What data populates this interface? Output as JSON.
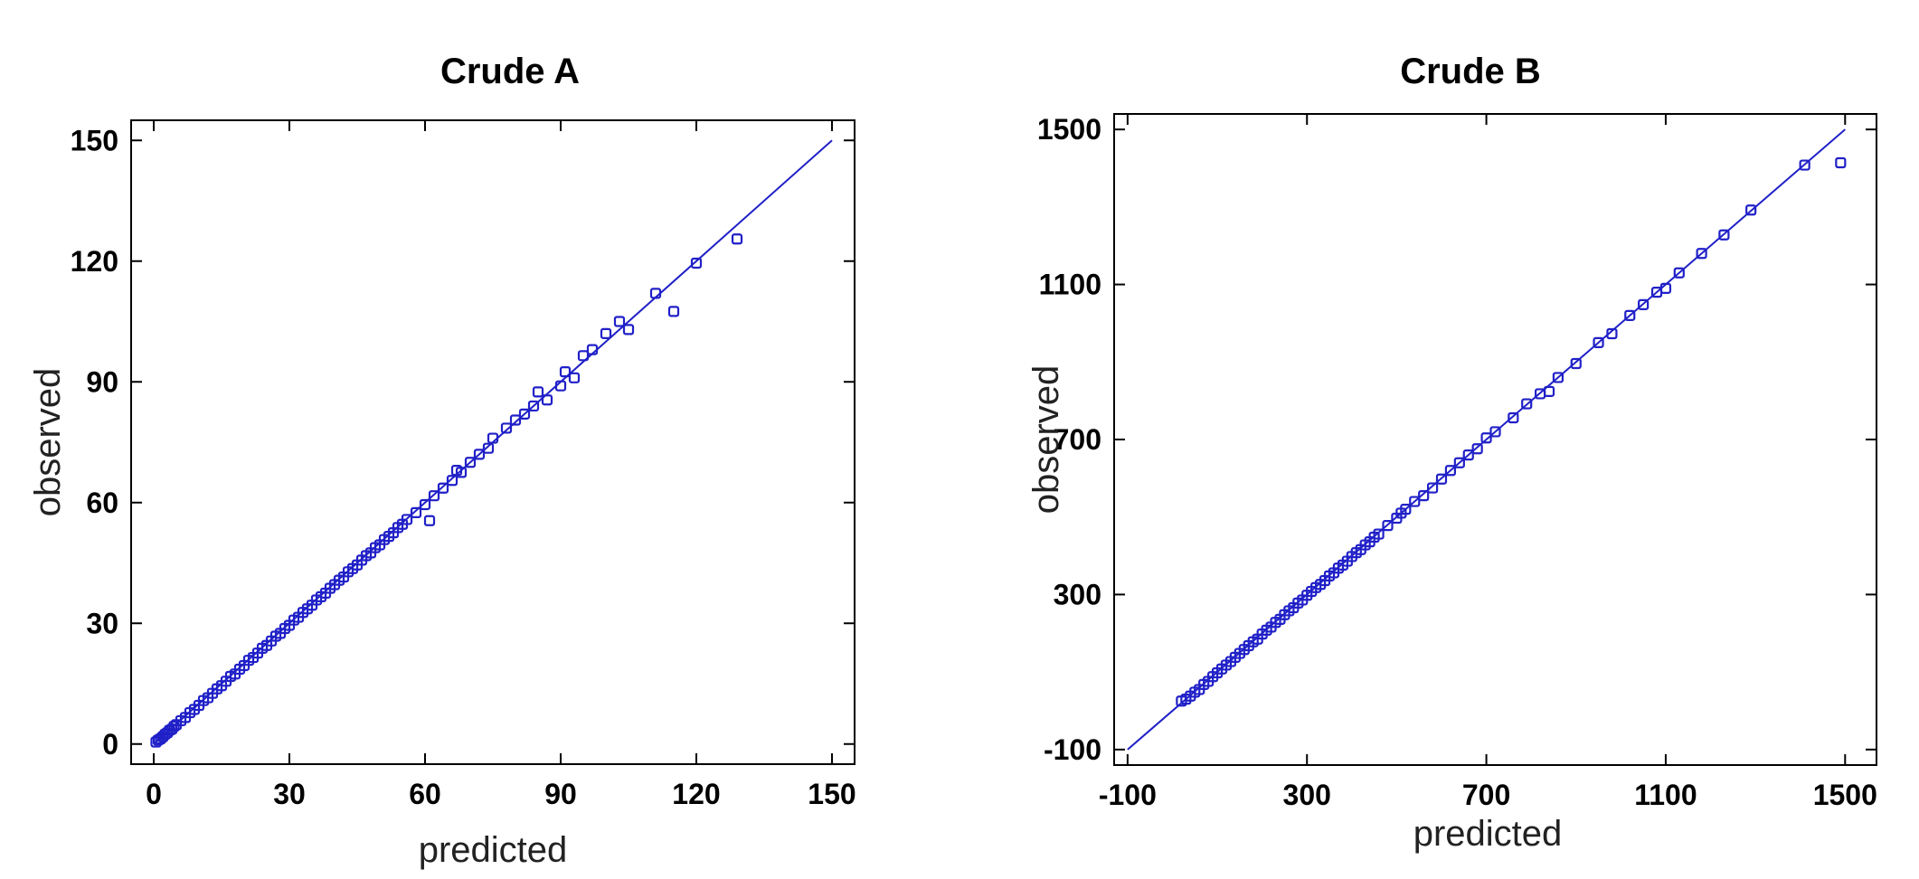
{
  "chart_data": [
    {
      "type": "scatter",
      "title": "Crude A",
      "xlabel": "predicted",
      "ylabel": "observed",
      "xlim": [
        -5,
        155
      ],
      "ylim": [
        -5,
        155
      ],
      "xticks": [
        0,
        30,
        60,
        90,
        120,
        150
      ],
      "yticks": [
        0,
        30,
        60,
        90,
        120,
        150
      ],
      "grid": false,
      "legend": "none",
      "color": "#2020c8",
      "fit_line": {
        "from": [
          0,
          0
        ],
        "to": [
          150,
          150
        ]
      },
      "series": [
        {
          "x": [
            0.5,
            1,
            1.5,
            2,
            2.5,
            3,
            3.5,
            4,
            4.5,
            5,
            6,
            7,
            8,
            9,
            10,
            11,
            12,
            13,
            14,
            15,
            16,
            17,
            18,
            19,
            20,
            21,
            22,
            23,
            24,
            25,
            26,
            27,
            28,
            29,
            30,
            31,
            32,
            33,
            34,
            35,
            36,
            37,
            38,
            39,
            40,
            41,
            42,
            43,
            44,
            45,
            46,
            47,
            48,
            49,
            50,
            51,
            52,
            53,
            54,
            55,
            56,
            58,
            60,
            61,
            62,
            64,
            66,
            67,
            68,
            70,
            72,
            74,
            75,
            78,
            80,
            82,
            84,
            85,
            87,
            90,
            91,
            93,
            95,
            97,
            100,
            103,
            105,
            111,
            115,
            120,
            129
          ],
          "y": [
            0.5,
            1,
            1.3,
            1.8,
            2.4,
            2.8,
            3.4,
            3.7,
            4.4,
            4.8,
            5.8,
            6.6,
            7.8,
            8.6,
            9.6,
            10.8,
            11.5,
            12.6,
            13.7,
            14.5,
            15.6,
            16.8,
            17.4,
            18.6,
            19.5,
            20.8,
            21.5,
            22.6,
            23.8,
            24.5,
            25.6,
            26.8,
            27.5,
            28.7,
            29.5,
            30.8,
            31.5,
            32.7,
            33.6,
            34.5,
            35.8,
            36.6,
            37.5,
            38.7,
            39.6,
            40.7,
            41.5,
            42.8,
            43.6,
            44.5,
            45.7,
            46.8,
            47.5,
            48.8,
            49.5,
            50.8,
            51.6,
            52.5,
            53.8,
            54.6,
            55.8,
            57.5,
            59.5,
            55.5,
            61.7,
            63.6,
            65.5,
            68,
            67.5,
            70,
            72,
            73.5,
            76,
            78.5,
            80.5,
            82,
            84,
            87.5,
            85.5,
            89,
            92.5,
            91,
            96.5,
            98,
            102,
            105,
            103,
            112,
            107.5,
            119.5,
            125.5
          ]
        }
      ]
    },
    {
      "type": "scatter",
      "title": "Crude B",
      "xlabel": "predicted",
      "ylabel": "observed",
      "xlim": [
        -130,
        1570
      ],
      "ylim": [
        -140,
        1540
      ],
      "xticks": [
        -100,
        300,
        700,
        1100,
        1500
      ],
      "yticks": [
        -100,
        300,
        700,
        1100,
        1500
      ],
      "grid": false,
      "legend": "none",
      "color": "#2020c8",
      "fit_line": {
        "from": [
          -100,
          -100
        ],
        "to": [
          1500,
          1500
        ]
      },
      "series": [
        {
          "x": [
            20,
            30,
            40,
            50,
            60,
            70,
            80,
            90,
            100,
            110,
            120,
            130,
            140,
            150,
            160,
            170,
            180,
            190,
            200,
            210,
            220,
            230,
            240,
            250,
            260,
            270,
            280,
            290,
            300,
            310,
            320,
            330,
            340,
            350,
            360,
            370,
            380,
            390,
            400,
            410,
            420,
            430,
            440,
            450,
            460,
            480,
            500,
            510,
            520,
            540,
            560,
            580,
            600,
            620,
            640,
            660,
            680,
            700,
            720,
            760,
            790,
            820,
            840,
            860,
            900,
            950,
            980,
            1020,
            1050,
            1080,
            1100,
            1130,
            1180,
            1230,
            1290,
            1410,
            1490
          ],
          "y": [
            25,
            30,
            38,
            48,
            55,
            68,
            76,
            88,
            98,
            108,
            118,
            127,
            138,
            148,
            158,
            168,
            178,
            185,
            198,
            208,
            216,
            228,
            236,
            248,
            258,
            266,
            278,
            286,
            298,
            308,
            318,
            326,
            336,
            348,
            356,
            368,
            376,
            386,
            398,
            408,
            416,
            428,
            436,
            448,
            456,
            478,
            497,
            510,
            520,
            540,
            555,
            575,
            598,
            620,
            640,
            660,
            676,
            704,
            720,
            756,
            792,
            818,
            824,
            860,
            896,
            950,
            973,
            1020,
            1048,
            1080,
            1090,
            1130,
            1180,
            1228,
            1292,
            1408,
            1414
          ]
        }
      ]
    }
  ]
}
